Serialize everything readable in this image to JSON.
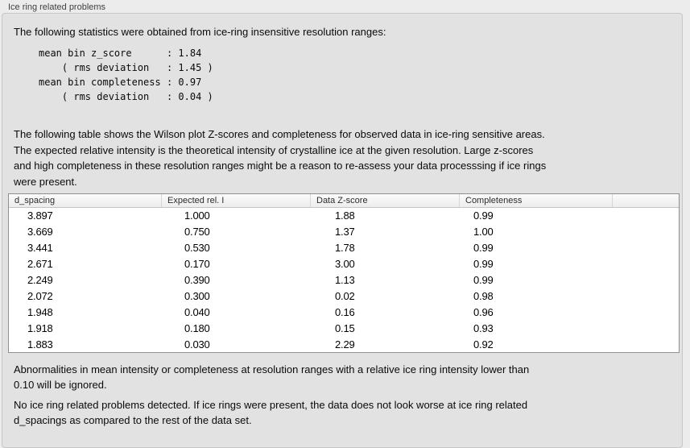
{
  "panel": {
    "title": "Ice ring related problems"
  },
  "intro": "The following statistics were obtained from ice-ring insensitive resolution ranges:",
  "stats_block": "mean bin z_score      : 1.84\n    ( rms deviation   : 1.45 )\nmean bin completeness : 0.97\n    ( rms deviation   : 0.04 )",
  "description": "The following table shows the Wilson plot Z-scores and completeness for observed data in ice-ring sensitive areas.\nThe expected relative intensity is the theoretical intensity of crystalline ice at the given resolution. Large z-scores\nand high completeness in these resolution ranges might be a reason to re-assess your data processsing if ice rings\nwere present.",
  "table": {
    "columns": [
      "d_spacing",
      "Expected rel. I",
      "Data Z-score",
      "Completeness",
      ""
    ],
    "rows": [
      [
        "3.897",
        "1.000",
        "1.88",
        "0.99"
      ],
      [
        "3.669",
        "0.750",
        "1.37",
        "1.00"
      ],
      [
        "3.441",
        "0.530",
        "1.78",
        "0.99"
      ],
      [
        "2.671",
        "0.170",
        "3.00",
        "0.99"
      ],
      [
        "2.249",
        "0.390",
        "1.13",
        "0.99"
      ],
      [
        "2.072",
        "0.300",
        "0.02",
        "0.98"
      ],
      [
        "1.948",
        "0.040",
        "0.16",
        "0.96"
      ],
      [
        "1.918",
        "0.180",
        "0.15",
        "0.93"
      ],
      [
        "1.883",
        "0.030",
        "2.29",
        "0.92"
      ]
    ]
  },
  "note_ignore": "Abnormalities in mean intensity or completeness at resolution ranges with a relative ice ring intensity lower than\n0.10 will be ignored.",
  "conclusion": "No ice ring related problems detected. If ice rings were present, the data does not look worse at ice ring related\nd_spacings as compared to the rest of the data set."
}
